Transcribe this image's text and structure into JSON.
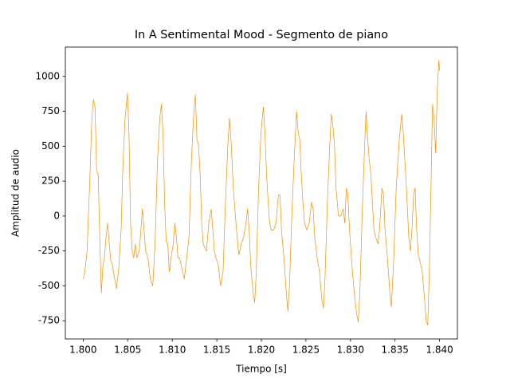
{
  "chart_data": {
    "type": "line",
    "title": "In A Sentimental Mood - Segmento de piano",
    "x_label": "Tiempo [s]",
    "y_label": "Amplitud de audio",
    "color": "#ff8c00",
    "grid": false,
    "xlim": [
      1.798,
      1.842
    ],
    "ylim": [
      -880,
      1210
    ],
    "xticks": [
      {
        "value": 1.8,
        "label": "1.800"
      },
      {
        "value": 1.805,
        "label": "1.805"
      },
      {
        "value": 1.81,
        "label": "1.810"
      },
      {
        "value": 1.815,
        "label": "1.815"
      },
      {
        "value": 1.82,
        "label": "1.820"
      },
      {
        "value": 1.825,
        "label": "1.825"
      },
      {
        "value": 1.83,
        "label": "1.830"
      },
      {
        "value": 1.835,
        "label": "1.835"
      },
      {
        "value": 1.84,
        "label": "1.840"
      }
    ],
    "yticks": [
      -750,
      -500,
      -250,
      0,
      250,
      500,
      750,
      1000
    ],
    "x": [
      1.8,
      1.80018,
      1.80044,
      1.80071,
      1.80098,
      1.80115,
      1.80133,
      1.80151,
      1.80169,
      1.80186,
      1.80204,
      1.80222,
      1.80239,
      1.80257,
      1.80275,
      1.80293,
      1.8031,
      1.80328,
      1.80346,
      1.80373,
      1.80399,
      1.80426,
      1.80443,
      1.8047,
      1.80497,
      1.80514,
      1.80532,
      1.8055,
      1.80568,
      1.80585,
      1.80603,
      1.8063,
      1.80648,
      1.80665,
      1.80683,
      1.80701,
      1.80727,
      1.80754,
      1.80781,
      1.80807,
      1.80834,
      1.8086,
      1.80878,
      1.80896,
      1.80914,
      1.80931,
      1.80949,
      1.80967,
      1.80985,
      1.81011,
      1.81029,
      1.81047,
      1.81064,
      1.81082,
      1.81109,
      1.81135,
      1.81162,
      1.81188,
      1.81215,
      1.81242,
      1.81259,
      1.81277,
      1.81295,
      1.81313,
      1.8133,
      1.81348,
      1.81366,
      1.81384,
      1.8141,
      1.81437,
      1.81455,
      1.81472,
      1.8149,
      1.81517,
      1.81543,
      1.8157,
      1.81597,
      1.81623,
      1.81641,
      1.81659,
      1.81685,
      1.81703,
      1.81721,
      1.81747,
      1.81774,
      1.81801,
      1.81827,
      1.81845,
      1.81863,
      1.8188,
      1.81907,
      1.81925,
      1.81943,
      1.81969,
      1.81996,
      1.82022,
      1.8204,
      1.82058,
      1.82076,
      1.82093,
      1.82111,
      1.82138,
      1.82164,
      1.82191,
      1.82209,
      1.82226,
      1.82253,
      1.8228,
      1.82297,
      1.82315,
      1.82342,
      1.82368,
      1.82395,
      1.82413,
      1.8243,
      1.82448,
      1.82466,
      1.82484,
      1.8251,
      1.82537,
      1.82563,
      1.82581,
      1.82599,
      1.82626,
      1.82652,
      1.82679,
      1.82697,
      1.82714,
      1.82741,
      1.82767,
      1.82785,
      1.82803,
      1.82821,
      1.82838,
      1.82865,
      1.82892,
      1.82918,
      1.82936,
      1.82954,
      1.82971,
      1.82989,
      1.83016,
      1.83042,
      1.83069,
      1.83087,
      1.83105,
      1.83131,
      1.83158,
      1.83175,
      1.83193,
      1.83211,
      1.83229,
      1.83246,
      1.83264,
      1.83282,
      1.83309,
      1.83326,
      1.83353,
      1.83371,
      1.83388,
      1.83415,
      1.83442,
      1.83459,
      1.83486,
      1.83513,
      1.83548,
      1.83575,
      1.83592,
      1.8361,
      1.83628,
      1.83654,
      1.83672,
      1.8369,
      1.83708,
      1.83725,
      1.83743,
      1.83761,
      1.83779,
      1.83805,
      1.83832,
      1.8385,
      1.83867,
      1.83885,
      1.83903,
      1.83921,
      1.83938,
      1.83956,
      1.83974,
      1.83992,
      1.84
    ],
    "values": [
      -450,
      -400,
      -250,
      200,
      700,
      835,
      780,
      330,
      290,
      -150,
      -550,
      -350,
      -300,
      -150,
      -50,
      -200,
      -320,
      -350,
      -420,
      -520,
      -380,
      -100,
      300,
      700,
      880,
      600,
      -50,
      -250,
      -300,
      -200,
      -300,
      -250,
      -100,
      50,
      -100,
      -250,
      -300,
      -450,
      -500,
      -200,
      400,
      700,
      800,
      600,
      100,
      -180,
      -200,
      -400,
      -300,
      -200,
      -50,
      -150,
      -300,
      -300,
      -380,
      -450,
      -300,
      -150,
      400,
      750,
      870,
      550,
      500,
      300,
      -50,
      -200,
      -230,
      -250,
      -50,
      50,
      -100,
      -250,
      -300,
      -350,
      -500,
      -400,
      100,
      500,
      700,
      550,
      200,
      50,
      -100,
      -280,
      -200,
      -150,
      -50,
      50,
      -100,
      -350,
      -550,
      -620,
      -400,
      200,
      600,
      780,
      600,
      300,
      100,
      -50,
      -100,
      -100,
      -50,
      150,
      150,
      -100,
      -300,
      -550,
      -680,
      -500,
      0,
      400,
      750,
      600,
      550,
      300,
      100,
      -50,
      -100,
      -50,
      100,
      50,
      -150,
      -300,
      -400,
      -600,
      -660,
      -450,
      100,
      500,
      730,
      650,
      500,
      200,
      0,
      0,
      50,
      -50,
      200,
      150,
      -100,
      -350,
      -550,
      -700,
      -760,
      -550,
      0,
      500,
      750,
      550,
      400,
      300,
      100,
      -100,
      -150,
      -200,
      -100,
      200,
      150,
      -100,
      -300,
      -550,
      -650,
      -300,
      200,
      550,
      730,
      600,
      400,
      200,
      -150,
      -250,
      -100,
      150,
      200,
      -100,
      -280,
      -320,
      -400,
      -600,
      -750,
      -780,
      -400,
      200,
      800,
      700,
      450,
      900,
      1115,
      1040
    ]
  }
}
